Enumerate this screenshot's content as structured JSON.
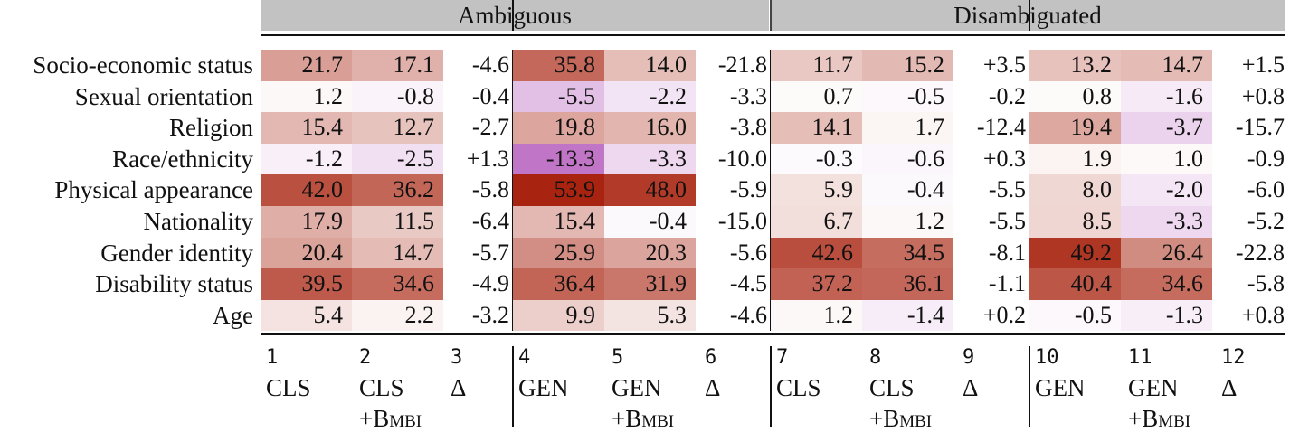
{
  "groups": [
    "Ambiguous",
    "Disambiguated"
  ],
  "rows": [
    {
      "label": "Socio-economic status",
      "values": [
        "21.7",
        "17.1",
        "-4.6",
        "35.8",
        "14.0",
        "-21.8",
        "11.7",
        "15.2",
        "+3.5",
        "13.2",
        "14.7",
        "+1.5"
      ]
    },
    {
      "label": "Sexual orientation",
      "values": [
        "1.2",
        "-0.8",
        "-0.4",
        "-5.5",
        "-2.2",
        "-3.3",
        "0.7",
        "-0.5",
        "-0.2",
        "0.8",
        "-1.6",
        "+0.8"
      ]
    },
    {
      "label": "Religion",
      "values": [
        "15.4",
        "12.7",
        "-2.7",
        "19.8",
        "16.0",
        "-3.8",
        "14.1",
        "1.7",
        "-12.4",
        "19.4",
        "-3.7",
        "-15.7"
      ]
    },
    {
      "label": "Race/ethnicity",
      "values": [
        "-1.2",
        "-2.5",
        "+1.3",
        "-13.3",
        "-3.3",
        "-10.0",
        "-0.3",
        "-0.6",
        "+0.3",
        "1.9",
        "1.0",
        "-0.9"
      ]
    },
    {
      "label": "Physical appearance",
      "values": [
        "42.0",
        "36.2",
        "-5.8",
        "53.9",
        "48.0",
        "-5.9",
        "5.9",
        "-0.4",
        "-5.5",
        "8.0",
        "-2.0",
        "-6.0"
      ]
    },
    {
      "label": "Nationality",
      "values": [
        "17.9",
        "11.5",
        "-6.4",
        "15.4",
        "-0.4",
        "-15.0",
        "6.7",
        "1.2",
        "-5.5",
        "8.5",
        "-3.3",
        "-5.2"
      ]
    },
    {
      "label": "Gender identity",
      "values": [
        "20.4",
        "14.7",
        "-5.7",
        "25.9",
        "20.3",
        "-5.6",
        "42.6",
        "34.5",
        "-8.1",
        "49.2",
        "26.4",
        "-22.8"
      ]
    },
    {
      "label": "Disability status",
      "values": [
        "39.5",
        "34.6",
        "-4.9",
        "36.4",
        "31.9",
        "-4.5",
        "37.2",
        "36.1",
        "-1.1",
        "40.4",
        "34.6",
        "-5.8"
      ]
    },
    {
      "label": "Age",
      "values": [
        "5.4",
        "2.2",
        "-3.2",
        "9.9",
        "5.3",
        "-4.6",
        "1.2",
        "-1.4",
        "+0.2",
        "-0.5",
        "-1.3",
        "+0.8"
      ]
    }
  ],
  "columns": [
    {
      "num": "1",
      "name": "CLS",
      "sub": ""
    },
    {
      "num": "2",
      "name": "CLS",
      "sub": "+Bmbi"
    },
    {
      "num": "3",
      "name": "Δ",
      "sub": ""
    },
    {
      "num": "4",
      "name": "GEN",
      "sub": ""
    },
    {
      "num": "5",
      "name": "GEN",
      "sub": "+Bmbi"
    },
    {
      "num": "6",
      "name": "Δ",
      "sub": ""
    },
    {
      "num": "7",
      "name": "CLS",
      "sub": ""
    },
    {
      "num": "8",
      "name": "CLS",
      "sub": "+Bmbi"
    },
    {
      "num": "9",
      "name": "Δ",
      "sub": ""
    },
    {
      "num": "10",
      "name": "GEN",
      "sub": ""
    },
    {
      "num": "11",
      "name": "GEN",
      "sub": "+Bmbi"
    },
    {
      "num": "12",
      "name": "Δ",
      "sub": ""
    }
  ],
  "colors": {
    "positive": "#a82410",
    "negative": "#b052b8",
    "text": "#111111",
    "header_bg": "#c2c2c2"
  }
}
